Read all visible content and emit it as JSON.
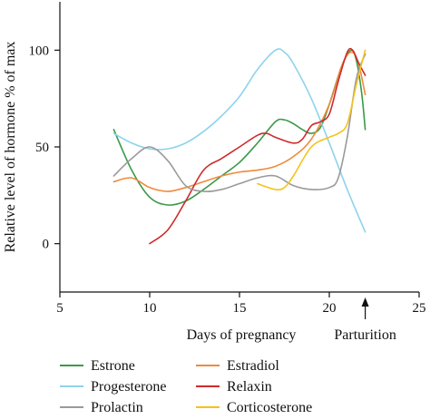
{
  "chart_data": {
    "type": "line",
    "xlabel": "Days of pregnancy",
    "ylabel": "Relative level of hormone % of max",
    "xlim": [
      5,
      25
    ],
    "ylim": [
      -25,
      125
    ],
    "xticks": [
      5,
      10,
      15,
      20,
      25
    ],
    "xtick_labels": [
      "5",
      "10",
      "15",
      "20",
      "25"
    ],
    "yticks": [
      0,
      50,
      100
    ],
    "ytick_labels": [
      "0",
      "50",
      "100"
    ],
    "grid": false,
    "legend_position": "bottom",
    "annotation": {
      "text": "Parturition",
      "x": 22
    },
    "series": [
      {
        "name": "Estrone",
        "color": "#3a9a48",
        "points": [
          [
            8,
            59
          ],
          [
            9,
            38
          ],
          [
            10,
            24
          ],
          [
            11,
            20
          ],
          [
            12,
            22
          ],
          [
            13,
            28
          ],
          [
            14,
            35
          ],
          [
            15,
            42
          ],
          [
            16,
            52
          ],
          [
            17,
            63
          ],
          [
            17.5,
            64
          ],
          [
            18,
            62
          ],
          [
            18.5,
            59
          ],
          [
            19,
            57
          ],
          [
            19.5,
            60
          ],
          [
            20,
            72
          ],
          [
            20.7,
            92
          ],
          [
            21.2,
            100
          ],
          [
            21.5,
            95
          ],
          [
            21.8,
            78
          ],
          [
            22,
            59
          ]
        ]
      },
      {
        "name": "Estradiol",
        "color": "#ef8a3c",
        "points": [
          [
            8,
            32
          ],
          [
            9,
            34
          ],
          [
            10,
            29
          ],
          [
            11,
            27
          ],
          [
            12,
            29
          ],
          [
            13,
            32
          ],
          [
            14,
            35
          ],
          [
            15,
            37
          ],
          [
            16,
            38
          ],
          [
            17,
            40
          ],
          [
            18,
            45
          ],
          [
            19,
            54
          ],
          [
            20,
            72
          ],
          [
            20.7,
            92
          ],
          [
            21.2,
            99
          ],
          [
            21.6,
            94
          ],
          [
            22,
            77
          ]
        ]
      },
      {
        "name": "Progesterone",
        "color": "#8ed3ec",
        "points": [
          [
            8,
            57
          ],
          [
            9,
            52
          ],
          [
            10,
            49
          ],
          [
            11,
            49
          ],
          [
            12,
            52
          ],
          [
            13,
            58
          ],
          [
            14,
            66
          ],
          [
            15,
            76
          ],
          [
            16,
            90
          ],
          [
            17,
            100
          ],
          [
            17.5,
            99
          ],
          [
            18,
            93
          ],
          [
            19,
            75
          ],
          [
            20,
            52
          ],
          [
            21,
            28
          ],
          [
            22,
            6
          ]
        ]
      },
      {
        "name": "Relaxin",
        "color": "#cf2a2a",
        "points": [
          [
            10,
            0
          ],
          [
            11,
            7
          ],
          [
            12,
            22
          ],
          [
            13,
            38
          ],
          [
            14,
            44
          ],
          [
            15,
            50
          ],
          [
            16,
            56
          ],
          [
            16.5,
            57
          ],
          [
            17,
            55
          ],
          [
            18,
            52
          ],
          [
            18.5,
            54
          ],
          [
            19,
            61
          ],
          [
            19.5,
            63
          ],
          [
            20,
            67
          ],
          [
            20.5,
            84
          ],
          [
            21,
            99
          ],
          [
            21.3,
            100
          ],
          [
            21.6,
            94
          ],
          [
            22,
            87
          ]
        ]
      },
      {
        "name": "Prolactin",
        "color": "#9a9a9a",
        "points": [
          [
            8,
            35
          ],
          [
            9,
            44
          ],
          [
            10,
            50
          ],
          [
            11,
            43
          ],
          [
            12,
            30
          ],
          [
            13,
            27
          ],
          [
            14,
            28
          ],
          [
            15,
            31
          ],
          [
            16,
            34
          ],
          [
            17,
            35
          ],
          [
            18,
            30
          ],
          [
            19,
            28
          ],
          [
            20,
            29
          ],
          [
            20.5,
            34
          ],
          [
            21,
            55
          ],
          [
            21.5,
            85
          ],
          [
            22,
            98
          ]
        ]
      },
      {
        "name": "Corticosterone",
        "color": "#f6c21a",
        "points": [
          [
            16,
            31
          ],
          [
            17,
            28
          ],
          [
            17.5,
            29
          ],
          [
            18,
            35
          ],
          [
            19,
            50
          ],
          [
            20,
            55
          ],
          [
            20.5,
            57
          ],
          [
            21,
            62
          ],
          [
            21.5,
            82
          ],
          [
            22,
            100
          ]
        ]
      }
    ]
  }
}
